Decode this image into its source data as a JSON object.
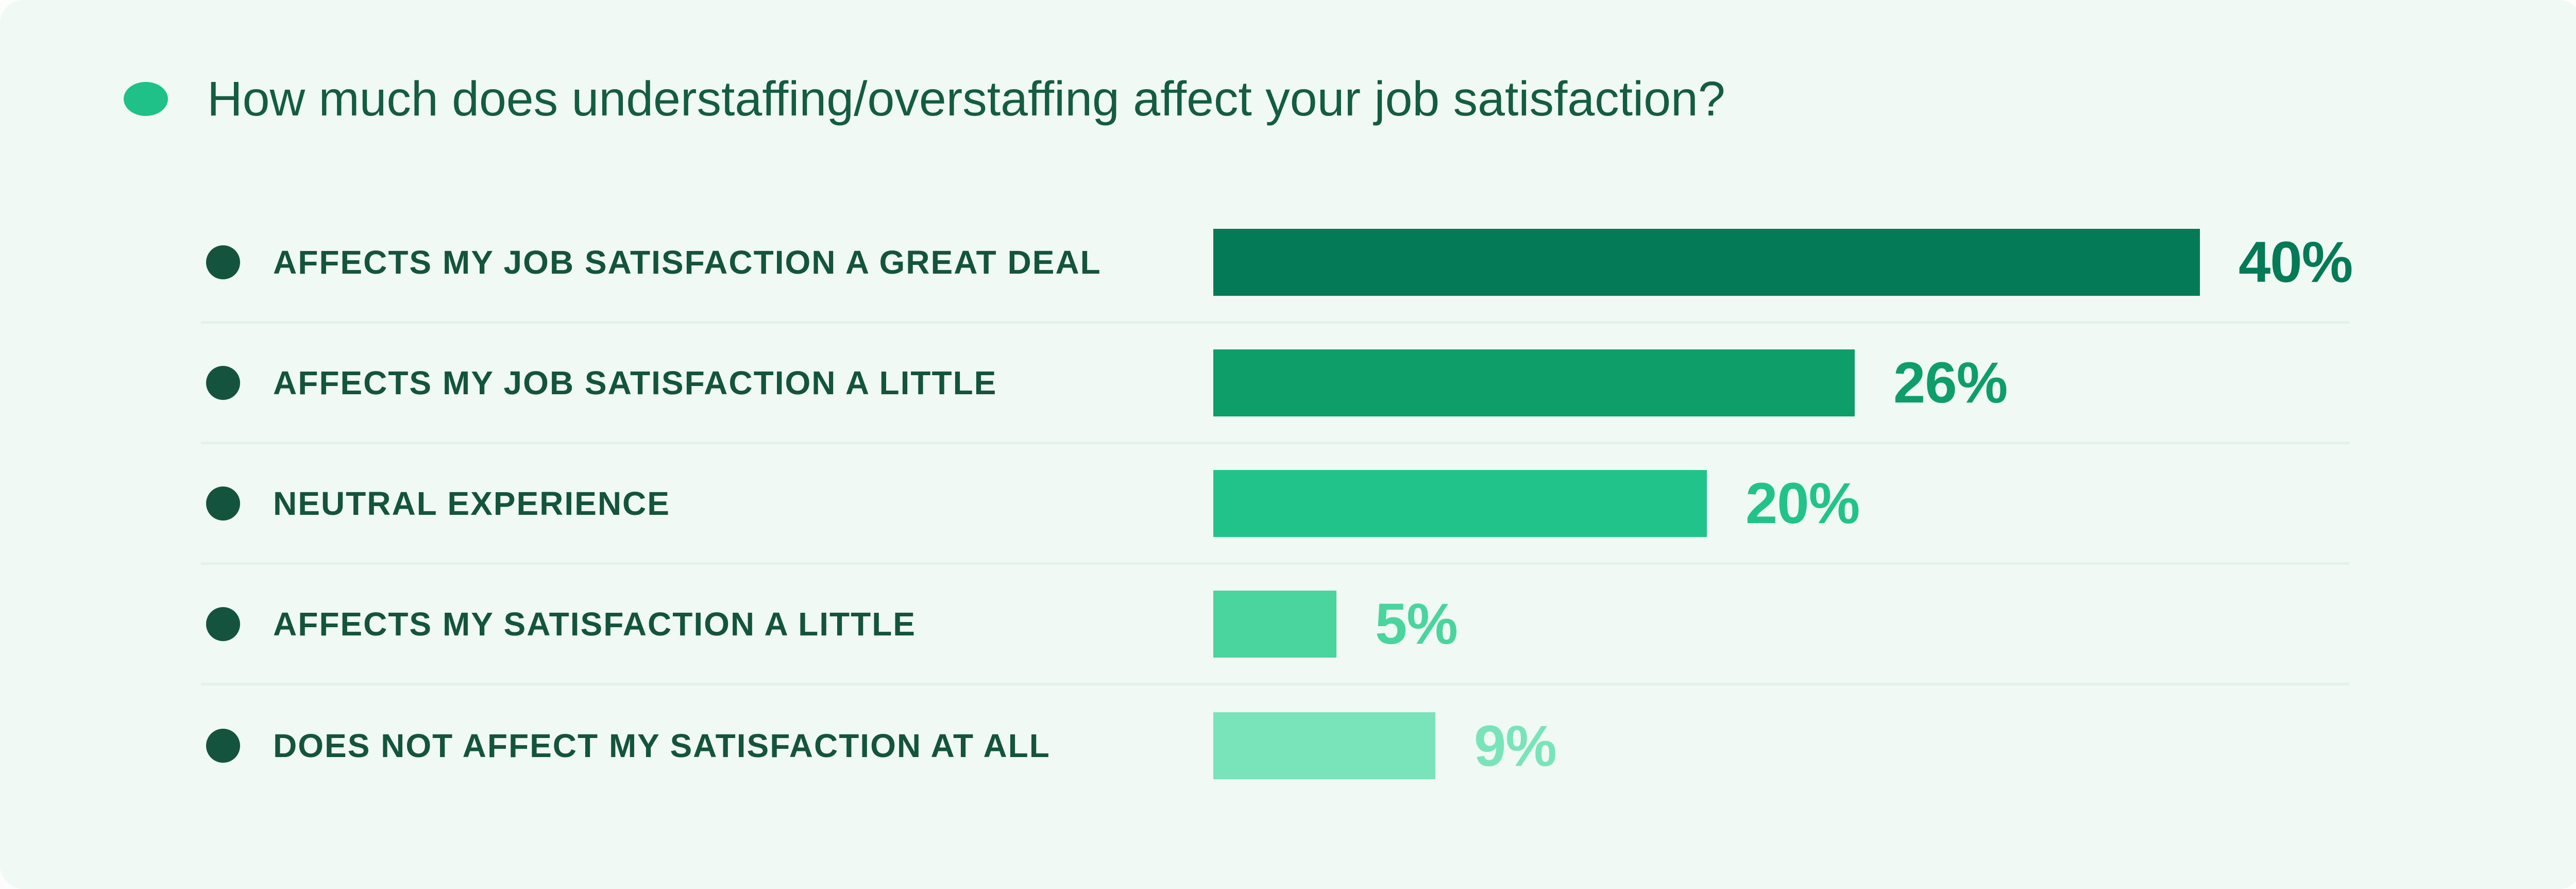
{
  "page": {
    "background": "#fdfdfd",
    "card_background": "#f0f9f4"
  },
  "title": {
    "text": "How much does understaffing/overstaffing affect your job satisfaction?",
    "text_color": "#145c44",
    "bullet_color": "#1fc189"
  },
  "styles": {
    "label_color": "#14543e",
    "dot_color": "#14543e",
    "separator_color": "#e3f2ea"
  },
  "chart_data": {
    "type": "bar",
    "orientation": "horizontal",
    "title": "How much does understaffing/overstaffing affect your job satisfaction?",
    "categories": [
      "AFFECTS MY JOB SATISFACTION A GREAT DEAL",
      "AFFECTS MY JOB SATISFACTION A LITTLE",
      "NEUTRAL EXPERIENCE",
      "AFFECTS MY SATISFACTION A LITTLE",
      "DOES NOT AFFECT MY SATISFACTION AT ALL"
    ],
    "values": [
      40,
      26,
      20,
      5,
      9
    ],
    "unit": "%",
    "value_labels": [
      "40%",
      "26%",
      "20%",
      "5%",
      "9%"
    ],
    "bar_colors": [
      "#047a57",
      "#0d9e6a",
      "#22c38a",
      "#4ad49e",
      "#79e4ba"
    ],
    "xlabel": "",
    "ylabel": "",
    "xlim": [
      0,
      40
    ],
    "grid": false,
    "legend": false,
    "value_label_position": "right-of-bar"
  }
}
